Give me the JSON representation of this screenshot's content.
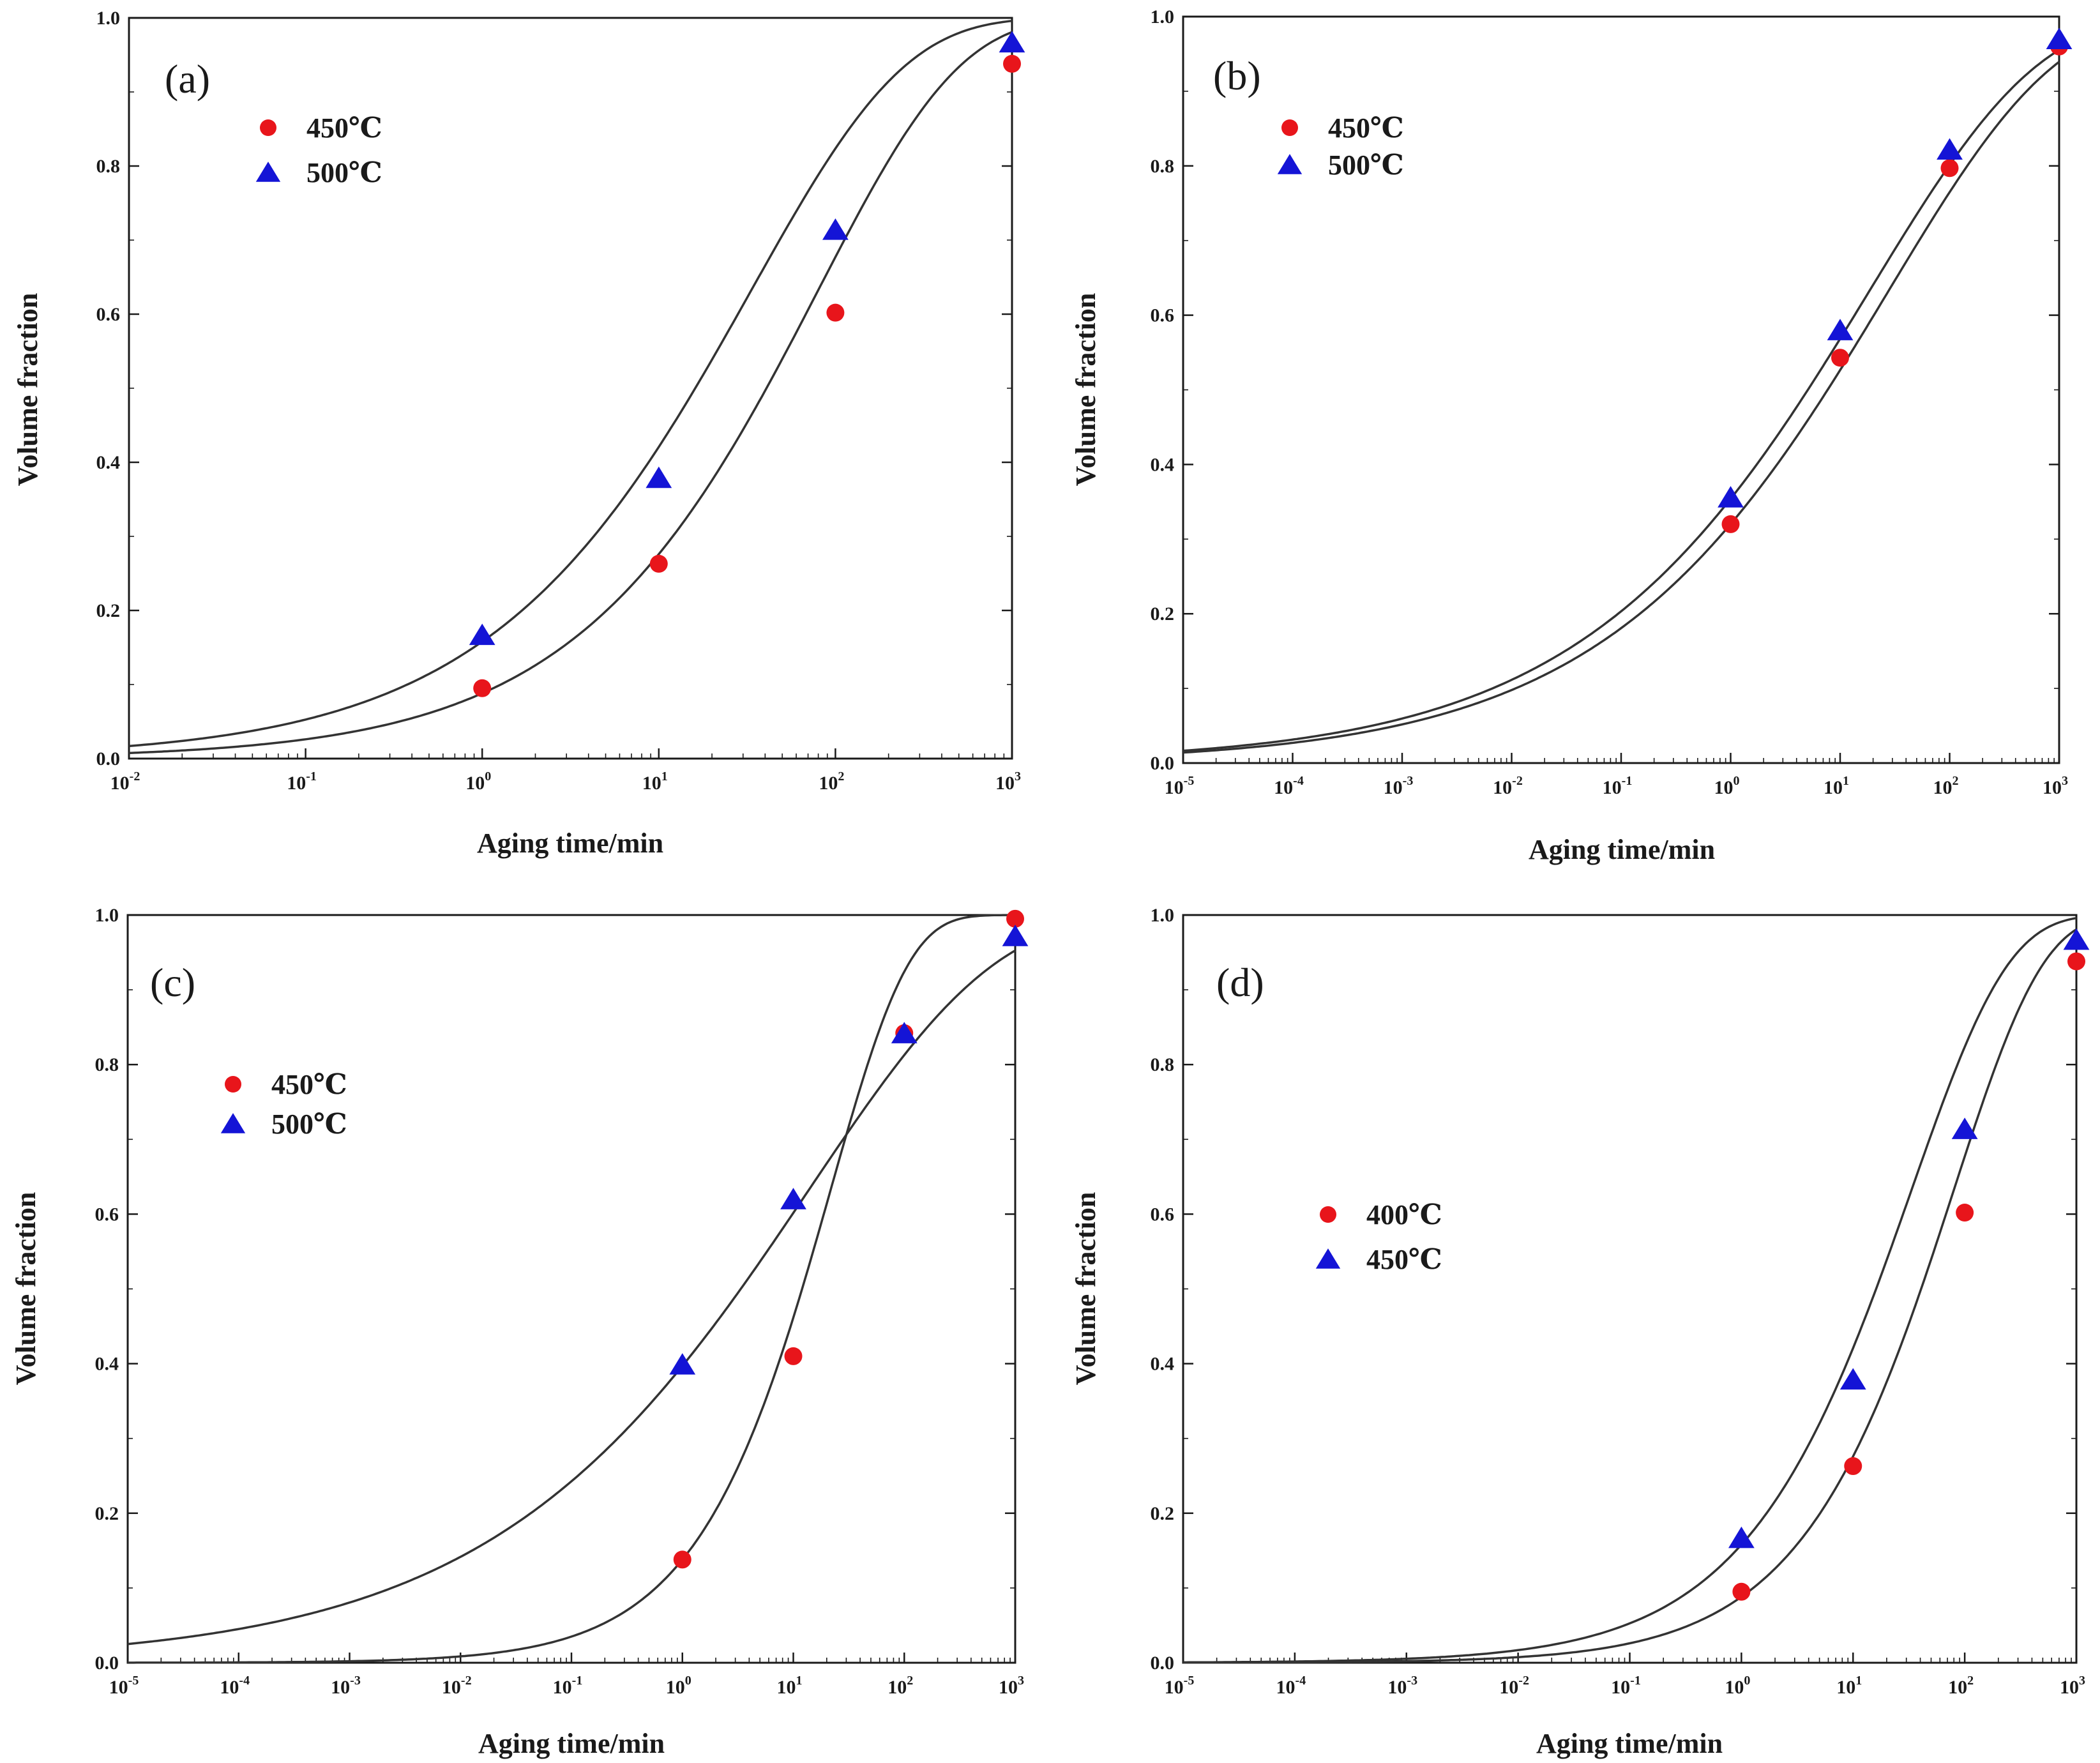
{
  "figure": {
    "colors": {
      "circle": "#e8151b",
      "triangle": "#1414d6",
      "curve": "#333333",
      "axis": "#1a1a1a"
    }
  },
  "chart_data": [
    {
      "panel": "(a)",
      "type": "scatter",
      "x_scale": "log",
      "xlim_exp": [
        -2,
        3
      ],
      "ylim": [
        0.0,
        1.0
      ],
      "xlabel": "Aging time/min",
      "ylabel": "Volume fraction",
      "x_tick_exponents": [
        "-2",
        "-1",
        "0",
        "1",
        "2",
        "3"
      ],
      "y_ticks": [
        "0.0",
        "0.2",
        "0.4",
        "0.6",
        "0.8",
        "1.0"
      ],
      "legend": {
        "position": "top-left",
        "entries": [
          {
            "label": "450℃",
            "marker": "circle"
          },
          {
            "label": "500℃",
            "marker": "triangle"
          }
        ]
      },
      "series": [
        {
          "name": "450℃",
          "marker": "circle",
          "x": [
            1,
            10,
            100,
            1000
          ],
          "y": [
            0.095,
            0.263,
            0.602,
            0.938
          ]
        },
        {
          "name": "500℃",
          "marker": "triangle",
          "x": [
            1,
            10,
            100,
            1000
          ],
          "y": [
            0.165,
            0.377,
            0.712,
            0.965
          ]
        }
      ],
      "fits": [
        {
          "series": "450℃",
          "k": 0.0923,
          "n": 0.544
        },
        {
          "series": "500℃",
          "k": 0.1719,
          "n": 0.502
        }
      ]
    },
    {
      "panel": "(b)",
      "type": "scatter",
      "x_scale": "log",
      "xlim_exp": [
        -5,
        3
      ],
      "ylim": [
        0.0,
        1.0
      ],
      "xlabel": "Aging time/min",
      "ylabel": "Volume fraction",
      "x_tick_exponents": [
        "-5",
        "-4",
        "-3",
        "-2",
        "-1",
        "0",
        "1",
        "2",
        "3"
      ],
      "y_ticks": [
        "0.0",
        "0.2",
        "0.4",
        "0.6",
        "0.8",
        "1.0"
      ],
      "legend": {
        "position": "top-left",
        "entries": [
          {
            "label": "450℃",
            "marker": "circle"
          },
          {
            "label": "500℃",
            "marker": "triangle"
          }
        ]
      },
      "series": [
        {
          "name": "450℃",
          "marker": "circle",
          "x": [
            1,
            10,
            100,
            1000
          ],
          "y": [
            0.32,
            0.543,
            0.797,
            0.96
          ]
        },
        {
          "name": "500℃",
          "marker": "triangle",
          "x": [
            1,
            10,
            100,
            1000
          ],
          "y": [
            0.354,
            0.578,
            0.82,
            0.968
          ]
        }
      ],
      "fits": [
        {
          "series": "450℃",
          "k": 0.386,
          "n": 0.287
        },
        {
          "series": "500℃",
          "k": 0.437,
          "n": 0.284
        }
      ]
    },
    {
      "panel": "(c)",
      "type": "scatter",
      "x_scale": "log",
      "xlim_exp": [
        -5,
        3
      ],
      "ylim": [
        0.0,
        1.0
      ],
      "xlabel": "Aging time/min",
      "ylabel": "Volume fraction",
      "x_tick_exponents": [
        "-5",
        "-4",
        "-3",
        "-2",
        "-1",
        "0",
        "1",
        "2",
        "3"
      ],
      "y_ticks": [
        "0.0",
        "0.2",
        "0.4",
        "0.6",
        "0.8",
        "1.0"
      ],
      "legend": {
        "position": "upper-left",
        "entries": [
          {
            "label": "450℃",
            "marker": "circle"
          },
          {
            "label": "500℃",
            "marker": "triangle"
          }
        ]
      },
      "series": [
        {
          "name": "450℃",
          "marker": "circle",
          "x": [
            1,
            10,
            100,
            1000
          ],
          "y": [
            0.138,
            0.41,
            0.842,
            0.995
          ]
        },
        {
          "name": "500℃",
          "marker": "triangle",
          "x": [
            1,
            10,
            100,
            1000
          ],
          "y": [
            0.397,
            0.618,
            0.84,
            0.97
          ]
        }
      ],
      "fits": [
        {
          "series": "450℃",
          "k": 0.1485,
          "n": 0.62
        },
        {
          "series": "500℃",
          "k": 0.5058,
          "n": 0.26
        }
      ]
    },
    {
      "panel": "(d)",
      "type": "scatter",
      "x_scale": "log",
      "xlim_exp": [
        -5,
        3
      ],
      "ylim": [
        0.0,
        1.0
      ],
      "xlabel": "Aging time/min",
      "ylabel": "Volume fraction",
      "x_tick_exponents": [
        "-5",
        "-4",
        "-3",
        "-2",
        "-1",
        "0",
        "1",
        "2",
        "3"
      ],
      "y_ticks": [
        "0.0",
        "0.2",
        "0.4",
        "0.6",
        "0.8",
        "1.0"
      ],
      "legend": {
        "position": "middle-left",
        "entries": [
          {
            "label": "400℃",
            "marker": "circle"
          },
          {
            "label": "450℃",
            "marker": "triangle"
          }
        ]
      },
      "series": [
        {
          "name": "400℃",
          "marker": "circle",
          "x": [
            1,
            10,
            100,
            1000
          ],
          "y": [
            0.095,
            0.263,
            0.602,
            0.938
          ]
        },
        {
          "name": "450℃",
          "marker": "triangle",
          "x": [
            1,
            10,
            100,
            1000
          ],
          "y": [
            0.165,
            0.377,
            0.712,
            0.965
          ]
        }
      ],
      "fits": [
        {
          "series": "400℃",
          "k": 0.0923,
          "n": 0.544
        },
        {
          "series": "450℃",
          "k": 0.1719,
          "n": 0.502
        }
      ]
    }
  ]
}
